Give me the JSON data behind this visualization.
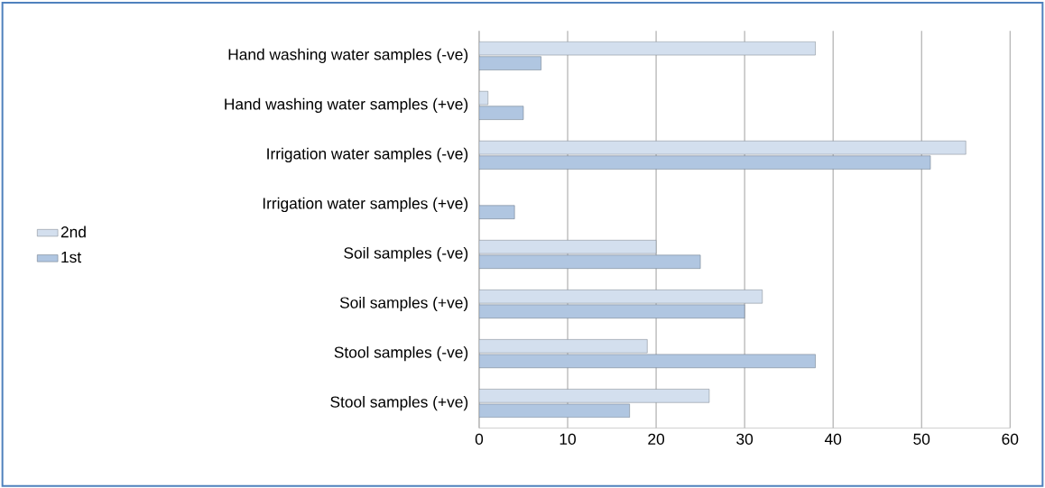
{
  "chart_data": {
    "type": "bar",
    "orientation": "horizontal",
    "categories": [
      "Hand washing water samples (-ve)",
      "Hand washing water samples (+ve)",
      "Irrigation water samples (-ve)",
      "Irrigation water samples (+ve)",
      "Soil samples (-ve)",
      "Soil samples (+ve)",
      "Stool samples (-ve)",
      "Stool samples (+ve)"
    ],
    "series": [
      {
        "name": "2nd",
        "color": "#d3dfee",
        "values": [
          38,
          1,
          55,
          0,
          20,
          32,
          19,
          26
        ]
      },
      {
        "name": "1st",
        "color": "#b0c6e1",
        "values": [
          7,
          5,
          51,
          4,
          25,
          30,
          38,
          17
        ]
      }
    ],
    "xlim": [
      0,
      60
    ],
    "xticks": [
      0,
      10,
      20,
      30,
      40,
      50,
      60
    ],
    "grid": "x",
    "legend": "left"
  }
}
